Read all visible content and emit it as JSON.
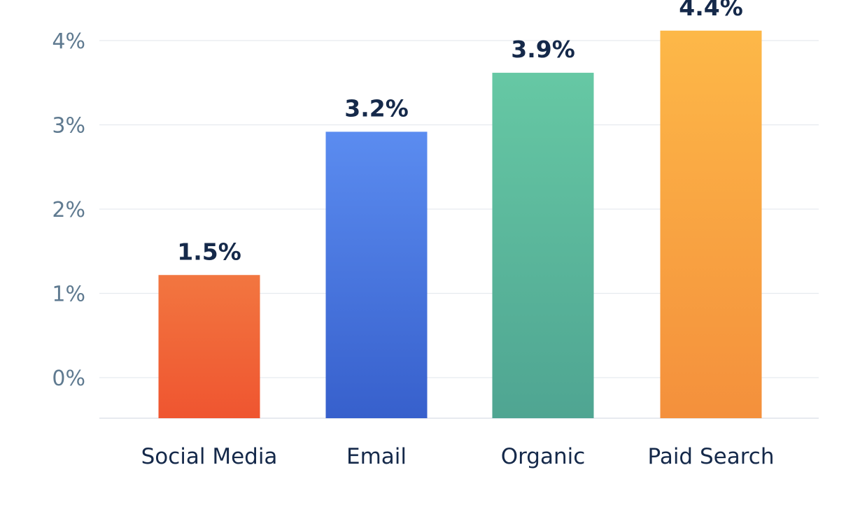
{
  "chart_data": {
    "type": "bar",
    "title": "",
    "xlabel": "",
    "ylabel": "",
    "categories": [
      "Social Media",
      "Email",
      "Organic",
      "Paid Search"
    ],
    "values": [
      1.5,
      3.2,
      3.9,
      4.4
    ],
    "data_labels": [
      "1.5%",
      "3.2%",
      "3.9%",
      "4.4%"
    ],
    "yticks": [
      0,
      1,
      2,
      3,
      4
    ],
    "ytick_labels": [
      "0%",
      "1%",
      "2%",
      "3%",
      "4%"
    ],
    "grid": true,
    "legend": "none",
    "colors": [
      {
        "top": "#f27640",
        "bottom": "#ef5530"
      },
      {
        "top": "#5b8cf0",
        "bottom": "#3760cc"
      },
      {
        "top": "#66c8a4",
        "bottom": "#4fa592"
      },
      {
        "top": "#fdb848",
        "bottom": "#f4903c"
      }
    ]
  }
}
